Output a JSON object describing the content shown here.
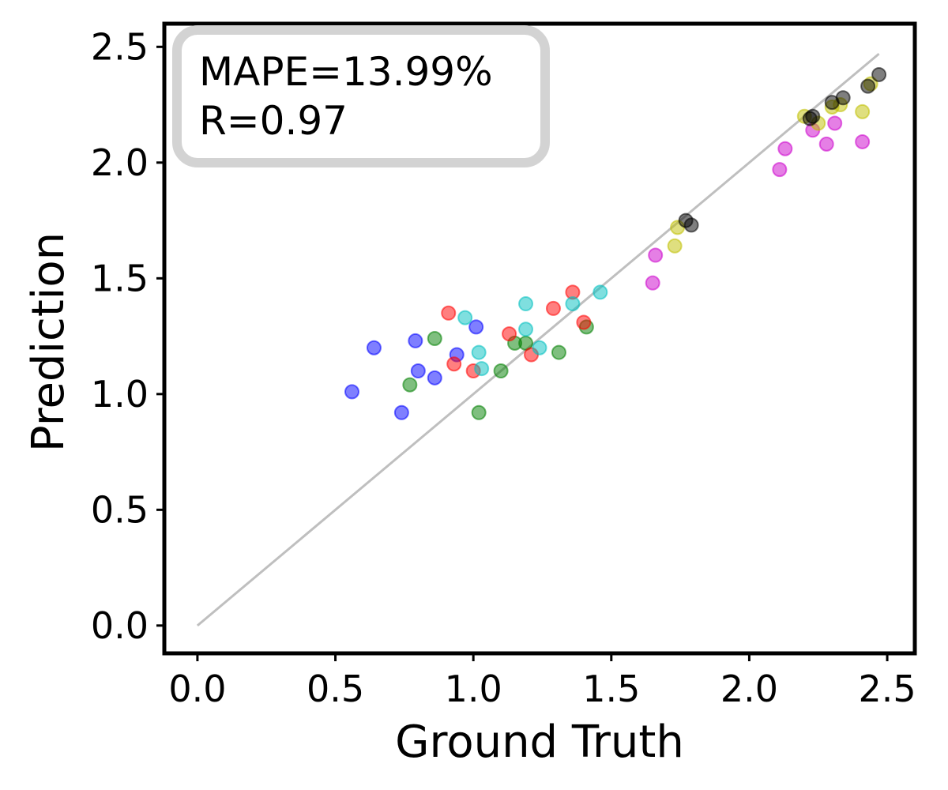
{
  "chart_data": {
    "type": "scatter",
    "title": "",
    "xlabel": "Ground Truth",
    "ylabel": "Prediction",
    "xlim": [
      -0.12,
      2.6
    ],
    "ylim": [
      -0.12,
      2.6
    ],
    "xticks": [
      "0.0",
      "0.5",
      "1.0",
      "1.5",
      "2.0",
      "2.5"
    ],
    "yticks": [
      "0.0",
      "0.5",
      "1.0",
      "1.5",
      "2.0",
      "2.5"
    ],
    "grid": false,
    "reference_line": {
      "x": [
        0.0,
        2.47
      ],
      "y": [
        0.0,
        2.47
      ],
      "color": "#bfbfbf"
    },
    "annotation": {
      "lines": [
        "MAPE=13.99%",
        "R=0.97"
      ],
      "position": "top-left",
      "border_color": "#d3d3d3"
    },
    "series": [
      {
        "color": "#0000ff",
        "points": [
          [
            0.56,
            1.01
          ],
          [
            0.64,
            1.2
          ],
          [
            0.74,
            0.92
          ],
          [
            0.79,
            1.23
          ],
          [
            0.8,
            1.1
          ],
          [
            0.86,
            1.07
          ],
          [
            0.94,
            1.17
          ],
          [
            1.01,
            1.29
          ]
        ]
      },
      {
        "color": "#008000",
        "points": [
          [
            0.77,
            1.04
          ],
          [
            0.86,
            1.24
          ],
          [
            1.02,
            0.92
          ],
          [
            1.1,
            1.1
          ],
          [
            1.15,
            1.22
          ],
          [
            1.19,
            1.22
          ],
          [
            1.31,
            1.18
          ],
          [
            1.41,
            1.29
          ]
        ]
      },
      {
        "color": "#ff0000",
        "points": [
          [
            0.91,
            1.35
          ],
          [
            0.93,
            1.13
          ],
          [
            1.0,
            1.1
          ],
          [
            1.13,
            1.26
          ],
          [
            1.21,
            1.17
          ],
          [
            1.29,
            1.37
          ],
          [
            1.36,
            1.44
          ],
          [
            1.4,
            1.31
          ]
        ]
      },
      {
        "color": "#00c0c0",
        "points": [
          [
            0.97,
            1.33
          ],
          [
            1.02,
            1.18
          ],
          [
            1.03,
            1.11
          ],
          [
            1.19,
            1.39
          ],
          [
            1.19,
            1.28
          ],
          [
            1.24,
            1.2
          ],
          [
            1.36,
            1.39
          ],
          [
            1.46,
            1.44
          ]
        ]
      },
      {
        "color": "#cc00cc",
        "points": [
          [
            1.65,
            1.48
          ],
          [
            1.66,
            1.6
          ],
          [
            2.11,
            1.97
          ],
          [
            2.13,
            2.06
          ],
          [
            2.23,
            2.14
          ],
          [
            2.28,
            2.08
          ],
          [
            2.31,
            2.17
          ],
          [
            2.41,
            2.09
          ]
        ]
      },
      {
        "color": "#c0c000",
        "points": [
          [
            1.73,
            1.64
          ],
          [
            1.74,
            1.72
          ],
          [
            2.2,
            2.2
          ],
          [
            2.25,
            2.17
          ],
          [
            2.3,
            2.24
          ],
          [
            2.33,
            2.25
          ],
          [
            2.41,
            2.22
          ],
          [
            2.44,
            2.34
          ]
        ]
      },
      {
        "color": "#000000",
        "points": [
          [
            1.77,
            1.75
          ],
          [
            1.79,
            1.73
          ],
          [
            2.22,
            2.19
          ],
          [
            2.23,
            2.2
          ],
          [
            2.3,
            2.26
          ],
          [
            2.34,
            2.28
          ],
          [
            2.43,
            2.33
          ],
          [
            2.47,
            2.38
          ]
        ]
      }
    ]
  }
}
